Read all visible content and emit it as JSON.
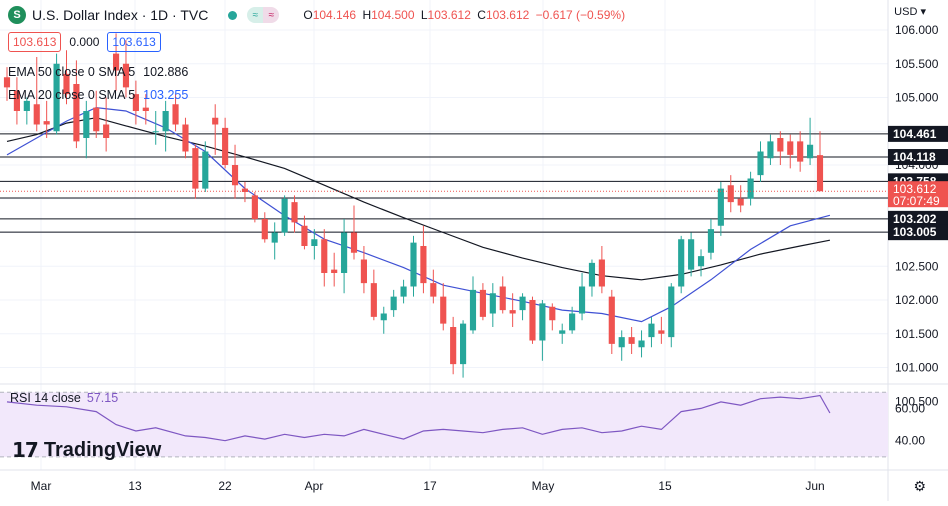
{
  "header": {
    "symbol_badge": "S",
    "title": "U.S. Dollar Index · 1D · TVC",
    "ohlc": [
      {
        "k": "O",
        "v": "104.146"
      },
      {
        "k": "H",
        "v": "104.500"
      },
      {
        "k": "L",
        "v": "103.612"
      },
      {
        "k": "C",
        "v": "103.612"
      },
      {
        "k": "",
        "v": "−0.617 (−0.59%)"
      }
    ],
    "currency": "USD",
    "currency_caret": "▾"
  },
  "price_boxes": {
    "bid": "103.613",
    "spread": "0.000",
    "ask": "103.613"
  },
  "indicators": [
    {
      "name": "EMA 50 close 0 SMA 5",
      "value": "102.886",
      "color": "#131722"
    },
    {
      "name": "EMA 20 close 0 SMA 5",
      "value": "103.255",
      "color": "#2962ff"
    }
  ],
  "rsi": {
    "name": "RSI 14 close",
    "value": "57.15"
  },
  "brand": {
    "logo": "17",
    "name": "TradingView"
  },
  "colors": {
    "up": "#26a69a",
    "down": "#ef5350",
    "ema50": "#131722",
    "ema20": "#3f51d4",
    "rsi": "#7e57c2",
    "rsi_band": "#f2e8fb",
    "grid": "#f0f3fa"
  },
  "chart_data": {
    "type": "candlestick",
    "title": "U.S. Dollar Index",
    "interval": "1D",
    "source": "TVC",
    "y_range": [
      100.3,
      106.15
    ],
    "y_ticks": [
      "106.000",
      "105.500",
      "105.000",
      "104.500",
      "104.000",
      "103.500",
      "103.000",
      "102.500",
      "102.000",
      "101.500",
      "101.000",
      "100.500"
    ],
    "x_ticks": [
      "Mar",
      "13",
      "22",
      "Apr",
      "17",
      "May",
      "15",
      "Jun"
    ],
    "horizontal_levels": [
      104.461,
      104.118,
      103.758,
      103.512,
      103.202,
      103.005
    ],
    "last_price": {
      "value": "103.612",
      "countdown": "07:07:49"
    },
    "candles": [
      [
        105.3,
        105.45,
        104.95,
        105.15
      ],
      [
        105.1,
        105.3,
        104.6,
        104.8
      ],
      [
        104.8,
        105.0,
        104.6,
        104.95
      ],
      [
        104.9,
        105.6,
        104.5,
        104.6
      ],
      [
        104.65,
        104.95,
        104.4,
        104.6
      ],
      [
        104.5,
        105.65,
        104.45,
        105.5
      ],
      [
        105.35,
        105.7,
        104.9,
        105.05
      ],
      [
        105.2,
        105.55,
        104.25,
        104.35
      ],
      [
        104.4,
        104.95,
        104.1,
        104.8
      ],
      [
        104.85,
        105.1,
        104.4,
        104.5
      ],
      [
        104.6,
        105.0,
        104.2,
        104.4
      ],
      [
        105.65,
        105.95,
        105.1,
        105.4
      ],
      [
        105.5,
        105.85,
        105.0,
        105.15
      ],
      [
        105.05,
        105.25,
        104.6,
        104.8
      ],
      [
        104.85,
        105.05,
        104.6,
        104.8
      ],
      [
        104.5,
        104.8,
        104.3,
        104.5
      ],
      [
        104.5,
        104.95,
        104.2,
        104.8
      ],
      [
        104.9,
        105.05,
        104.5,
        104.6
      ],
      [
        104.6,
        104.7,
        104.1,
        104.2
      ],
      [
        104.25,
        104.3,
        103.5,
        103.65
      ],
      [
        103.65,
        104.35,
        103.6,
        104.2
      ],
      [
        104.7,
        104.9,
        104.15,
        104.6
      ],
      [
        104.55,
        104.7,
        103.95,
        104.0
      ],
      [
        104.0,
        104.3,
        103.5,
        103.7
      ],
      [
        103.65,
        103.75,
        103.45,
        103.6
      ],
      [
        103.55,
        103.6,
        103.15,
        103.2
      ],
      [
        103.2,
        103.3,
        102.85,
        102.9
      ],
      [
        102.85,
        103.15,
        102.6,
        103.0
      ],
      [
        103.0,
        103.55,
        102.95,
        103.5
      ],
      [
        103.45,
        103.55,
        103.0,
        103.15
      ],
      [
        103.1,
        103.25,
        102.75,
        102.8
      ],
      [
        102.8,
        103.05,
        102.6,
        102.9
      ],
      [
        102.9,
        103.05,
        102.2,
        102.4
      ],
      [
        102.45,
        102.7,
        102.2,
        102.4
      ],
      [
        102.4,
        103.2,
        102.1,
        103.0
      ],
      [
        103.0,
        103.4,
        102.6,
        102.7
      ],
      [
        102.6,
        102.8,
        102.1,
        102.25
      ],
      [
        102.25,
        102.45,
        101.7,
        101.75
      ],
      [
        101.7,
        101.9,
        101.5,
        101.8
      ],
      [
        101.85,
        102.15,
        101.75,
        102.05
      ],
      [
        102.05,
        102.3,
        101.95,
        102.2
      ],
      [
        102.2,
        102.95,
        102.05,
        102.85
      ],
      [
        102.8,
        103.1,
        102.1,
        102.25
      ],
      [
        102.25,
        102.45,
        101.95,
        102.05
      ],
      [
        102.05,
        102.25,
        101.55,
        101.65
      ],
      [
        101.6,
        101.75,
        100.9,
        101.05
      ],
      [
        101.05,
        101.7,
        100.85,
        101.65
      ],
      [
        101.55,
        102.35,
        101.5,
        102.15
      ],
      [
        102.15,
        102.25,
        101.7,
        101.75
      ],
      [
        101.8,
        102.25,
        101.6,
        102.1
      ],
      [
        102.2,
        102.35,
        101.8,
        101.85
      ],
      [
        101.85,
        102.1,
        101.6,
        101.8
      ],
      [
        101.85,
        102.1,
        101.7,
        102.05
      ],
      [
        102.0,
        102.05,
        101.35,
        101.4
      ],
      [
        101.4,
        102.0,
        101.1,
        101.95
      ],
      [
        101.9,
        101.95,
        101.55,
        101.7
      ],
      [
        101.5,
        101.65,
        101.35,
        101.55
      ],
      [
        101.55,
        101.9,
        101.5,
        101.8
      ],
      [
        101.8,
        102.4,
        101.7,
        102.2
      ],
      [
        102.2,
        102.6,
        102.05,
        102.55
      ],
      [
        102.6,
        102.8,
        102.1,
        102.2
      ],
      [
        102.05,
        102.15,
        101.2,
        101.35
      ],
      [
        101.3,
        101.55,
        101.1,
        101.45
      ],
      [
        101.45,
        101.6,
        101.2,
        101.35
      ],
      [
        101.3,
        101.55,
        101.15,
        101.4
      ],
      [
        101.45,
        101.75,
        101.3,
        101.65
      ],
      [
        101.55,
        101.75,
        101.35,
        101.5
      ],
      [
        101.45,
        102.25,
        101.3,
        102.2
      ],
      [
        102.2,
        102.95,
        102.1,
        102.9
      ],
      [
        102.45,
        103.0,
        102.35,
        102.9
      ],
      [
        102.5,
        102.75,
        102.35,
        102.65
      ],
      [
        102.7,
        103.2,
        102.6,
        103.05
      ],
      [
        103.1,
        103.75,
        102.95,
        103.65
      ],
      [
        103.7,
        103.85,
        103.3,
        103.45
      ],
      [
        103.5,
        103.7,
        103.3,
        103.4
      ],
      [
        103.5,
        103.9,
        103.4,
        103.8
      ],
      [
        103.85,
        104.35,
        103.75,
        104.2
      ],
      [
        104.1,
        104.45,
        104.0,
        104.35
      ],
      [
        104.4,
        104.5,
        104.0,
        104.2
      ],
      [
        104.35,
        104.45,
        103.95,
        104.15
      ],
      [
        104.35,
        104.5,
        103.9,
        104.05
      ],
      [
        104.1,
        104.7,
        104.0,
        104.3
      ],
      [
        104.146,
        104.5,
        103.612,
        103.612
      ]
    ],
    "ema50": [
      [
        0,
        104.35
      ],
      [
        3,
        104.45
      ],
      [
        6,
        104.62
      ],
      [
        9,
        104.7
      ],
      [
        12,
        104.58
      ],
      [
        16,
        104.42
      ],
      [
        20,
        104.28
      ],
      [
        24,
        104.12
      ],
      [
        28,
        103.95
      ],
      [
        32,
        103.7
      ],
      [
        36,
        103.45
      ],
      [
        40,
        103.22
      ],
      [
        44,
        103.0
      ],
      [
        48,
        102.78
      ],
      [
        52,
        102.62
      ],
      [
        56,
        102.48
      ],
      [
        60,
        102.36
      ],
      [
        64,
        102.3
      ],
      [
        68,
        102.38
      ],
      [
        72,
        102.52
      ],
      [
        76,
        102.68
      ],
      [
        80,
        102.8
      ],
      [
        83,
        102.886
      ]
    ],
    "ema20": [
      [
        0,
        104.15
      ],
      [
        3,
        104.4
      ],
      [
        6,
        104.65
      ],
      [
        9,
        104.85
      ],
      [
        12,
        104.8
      ],
      [
        16,
        104.55
      ],
      [
        20,
        104.2
      ],
      [
        24,
        103.65
      ],
      [
        28,
        103.25
      ],
      [
        32,
        102.9
      ],
      [
        36,
        102.7
      ],
      [
        40,
        102.48
      ],
      [
        44,
        102.22
      ],
      [
        48,
        102.1
      ],
      [
        52,
        101.98
      ],
      [
        56,
        101.85
      ],
      [
        60,
        101.8
      ],
      [
        64,
        101.68
      ],
      [
        67,
        101.9
      ],
      [
        71,
        102.3
      ],
      [
        75,
        102.75
      ],
      [
        79,
        103.1
      ],
      [
        83,
        103.255
      ]
    ],
    "rsi_range": [
      25,
      72
    ],
    "rsi_ticks": [
      "60.00",
      "40.00"
    ],
    "rsi_values": [
      [
        0,
        64
      ],
      [
        3,
        62
      ],
      [
        6,
        61
      ],
      [
        9,
        58
      ],
      [
        11,
        50
      ],
      [
        13,
        46
      ],
      [
        15,
        48
      ],
      [
        18,
        43
      ],
      [
        20,
        42
      ],
      [
        22,
        40
      ],
      [
        24,
        43
      ],
      [
        26,
        41
      ],
      [
        28,
        44
      ],
      [
        30,
        42
      ],
      [
        32,
        44
      ],
      [
        34,
        43
      ],
      [
        36,
        47
      ],
      [
        38,
        44
      ],
      [
        40,
        41
      ],
      [
        42,
        46
      ],
      [
        44,
        47
      ],
      [
        46,
        46
      ],
      [
        48,
        45
      ],
      [
        50,
        47
      ],
      [
        52,
        48
      ],
      [
        54,
        44
      ],
      [
        56,
        47
      ],
      [
        58,
        48
      ],
      [
        60,
        45
      ],
      [
        62,
        46
      ],
      [
        64,
        49
      ],
      [
        66,
        47
      ],
      [
        68,
        58
      ],
      [
        70,
        60
      ],
      [
        72,
        64
      ],
      [
        74,
        62
      ],
      [
        76,
        66
      ],
      [
        78,
        67
      ],
      [
        80,
        66
      ],
      [
        82,
        68
      ],
      [
        83,
        57.15
      ]
    ]
  }
}
